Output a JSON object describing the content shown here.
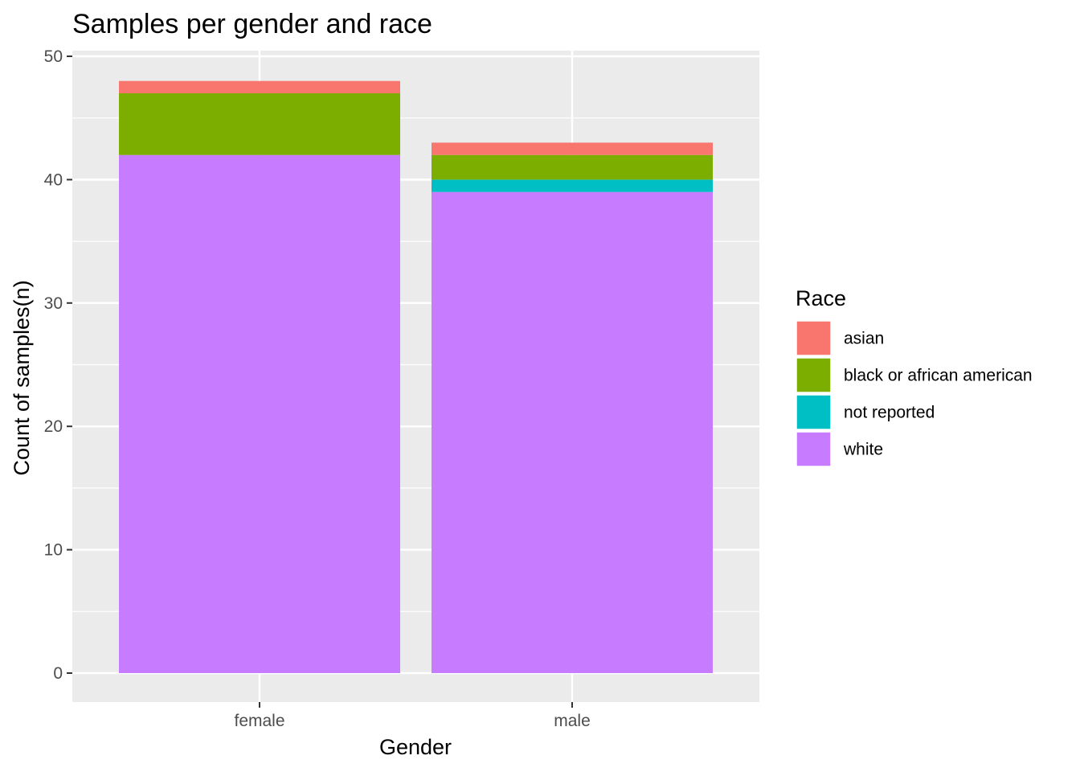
{
  "chart_data": {
    "type": "bar",
    "stacked": true,
    "title": "Samples per gender and race",
    "xlabel": "Gender",
    "ylabel": "Count of samples(n)",
    "categories": [
      "female",
      "male"
    ],
    "series": [
      {
        "name": "white",
        "color": "#C77CFF",
        "values": [
          42,
          39
        ]
      },
      {
        "name": "not reported",
        "color": "#00BFC4",
        "values": [
          0,
          1
        ]
      },
      {
        "name": "black or african american",
        "color": "#7CAE00",
        "values": [
          5,
          2
        ]
      },
      {
        "name": "asian",
        "color": "#F8766D",
        "values": [
          1,
          1
        ]
      }
    ],
    "ylim": [
      0,
      50
    ],
    "yticks": [
      0,
      10,
      20,
      30,
      40,
      50
    ],
    "grid": true,
    "panel_background": "#EBEBEB",
    "legend": {
      "title": "Race",
      "placement": "right",
      "entries": [
        {
          "label": "asian",
          "color": "#F8766D"
        },
        {
          "label": "black or african american",
          "color": "#7CAE00"
        },
        {
          "label": "not reported",
          "color": "#00BFC4"
        },
        {
          "label": "white",
          "color": "#C77CFF"
        }
      ]
    }
  }
}
